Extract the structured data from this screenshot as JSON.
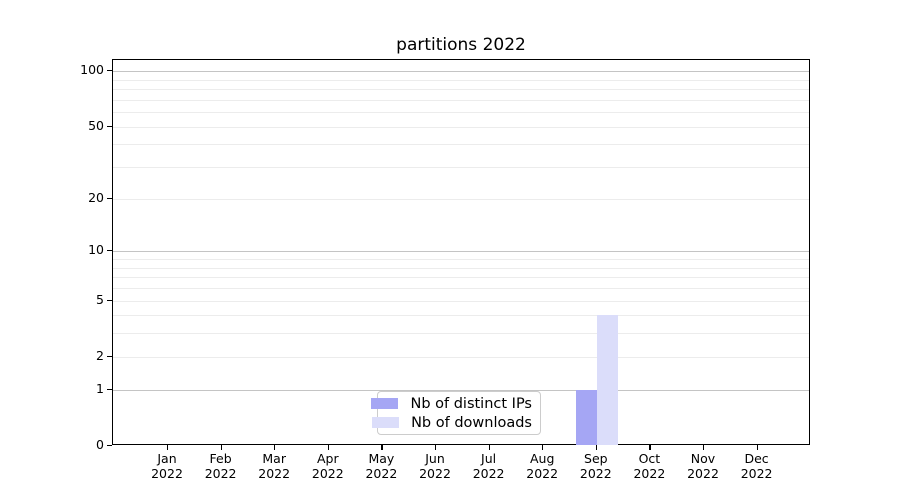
{
  "chart_data": {
    "type": "bar",
    "title": "partitions 2022",
    "categories": [
      "Jan",
      "Feb",
      "Mar",
      "Apr",
      "May",
      "Jun",
      "Jul",
      "Aug",
      "Sep",
      "Oct",
      "Nov",
      "Dec"
    ],
    "category_year": "2022",
    "series": [
      {
        "name": "Nb of distinct IPs",
        "color": "#a5a6f4",
        "values": [
          0,
          0,
          0,
          0,
          0,
          0,
          0,
          0,
          1,
          0,
          0,
          0
        ]
      },
      {
        "name": "Nb of downloads",
        "color": "#dbddfa",
        "values": [
          0,
          0,
          0,
          0,
          0,
          0,
          0,
          0,
          4,
          0,
          0,
          0
        ]
      }
    ],
    "y_ticks": [
      0,
      1,
      2,
      5,
      10,
      20,
      50,
      100
    ],
    "y_scale": "log1p",
    "ylim": [
      0,
      115
    ],
    "xlabel": "",
    "ylabel": "",
    "grid": "horizontal",
    "grid_major_values": [
      1,
      10,
      100
    ],
    "grid_minor_values": [
      2,
      3,
      4,
      5,
      6,
      7,
      8,
      9,
      20,
      30,
      40,
      50,
      60,
      70,
      80,
      90
    ],
    "legend_position": "lower center"
  },
  "colors": {
    "background": "#ffffff",
    "spine": "#000000",
    "grid_major": "#c4c4c4",
    "grid_minor": "#ececec",
    "text": "#000000",
    "legend_border": "#cccccc"
  }
}
